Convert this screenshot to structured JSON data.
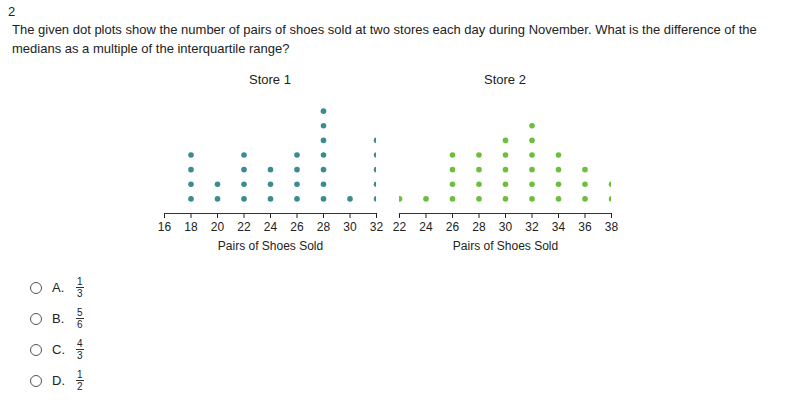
{
  "question_number": "2",
  "question": "The given dot plots show the number of pairs of shoes sold at two stores each day during November. What is the difference of the medians as a multiple of the interquartile range?",
  "chart_data": [
    {
      "type": "dot_plot",
      "title": "Store 1",
      "x_label": "Pairs of Shoes Sold",
      "x": [
        16,
        18,
        20,
        22,
        24,
        26,
        28,
        30,
        32
      ],
      "values": [
        0,
        4,
        2,
        4,
        3,
        4,
        7,
        1,
        5
      ],
      "xlim": [
        16,
        32
      ],
      "xticks": [
        16,
        18,
        20,
        22,
        24,
        26,
        28,
        30,
        32
      ],
      "color": "#3b8c91",
      "tick_labels": "x"
    },
    {
      "type": "dot_plot",
      "title": "Store 2",
      "x_label": "Pairs of Shoes Sold",
      "x": [
        22,
        24,
        26,
        28,
        30,
        32,
        34,
        36,
        38
      ],
      "values": [
        1,
        1,
        4,
        4,
        5,
        6,
        4,
        3,
        2
      ],
      "xlim": [
        22,
        38
      ],
      "xticks": [
        22,
        24,
        26,
        28,
        30,
        32,
        34,
        36,
        38
      ],
      "color": "#6cbf3c",
      "tick_labels": "x"
    }
  ],
  "choices": [
    {
      "label": "A.",
      "numerator": 1,
      "denominator": 3
    },
    {
      "label": "B.",
      "numerator": 5,
      "denominator": 6
    },
    {
      "label": "C.",
      "numerator": 4,
      "denominator": 3
    },
    {
      "label": "D.",
      "numerator": 1,
      "denominator": 2
    }
  ]
}
